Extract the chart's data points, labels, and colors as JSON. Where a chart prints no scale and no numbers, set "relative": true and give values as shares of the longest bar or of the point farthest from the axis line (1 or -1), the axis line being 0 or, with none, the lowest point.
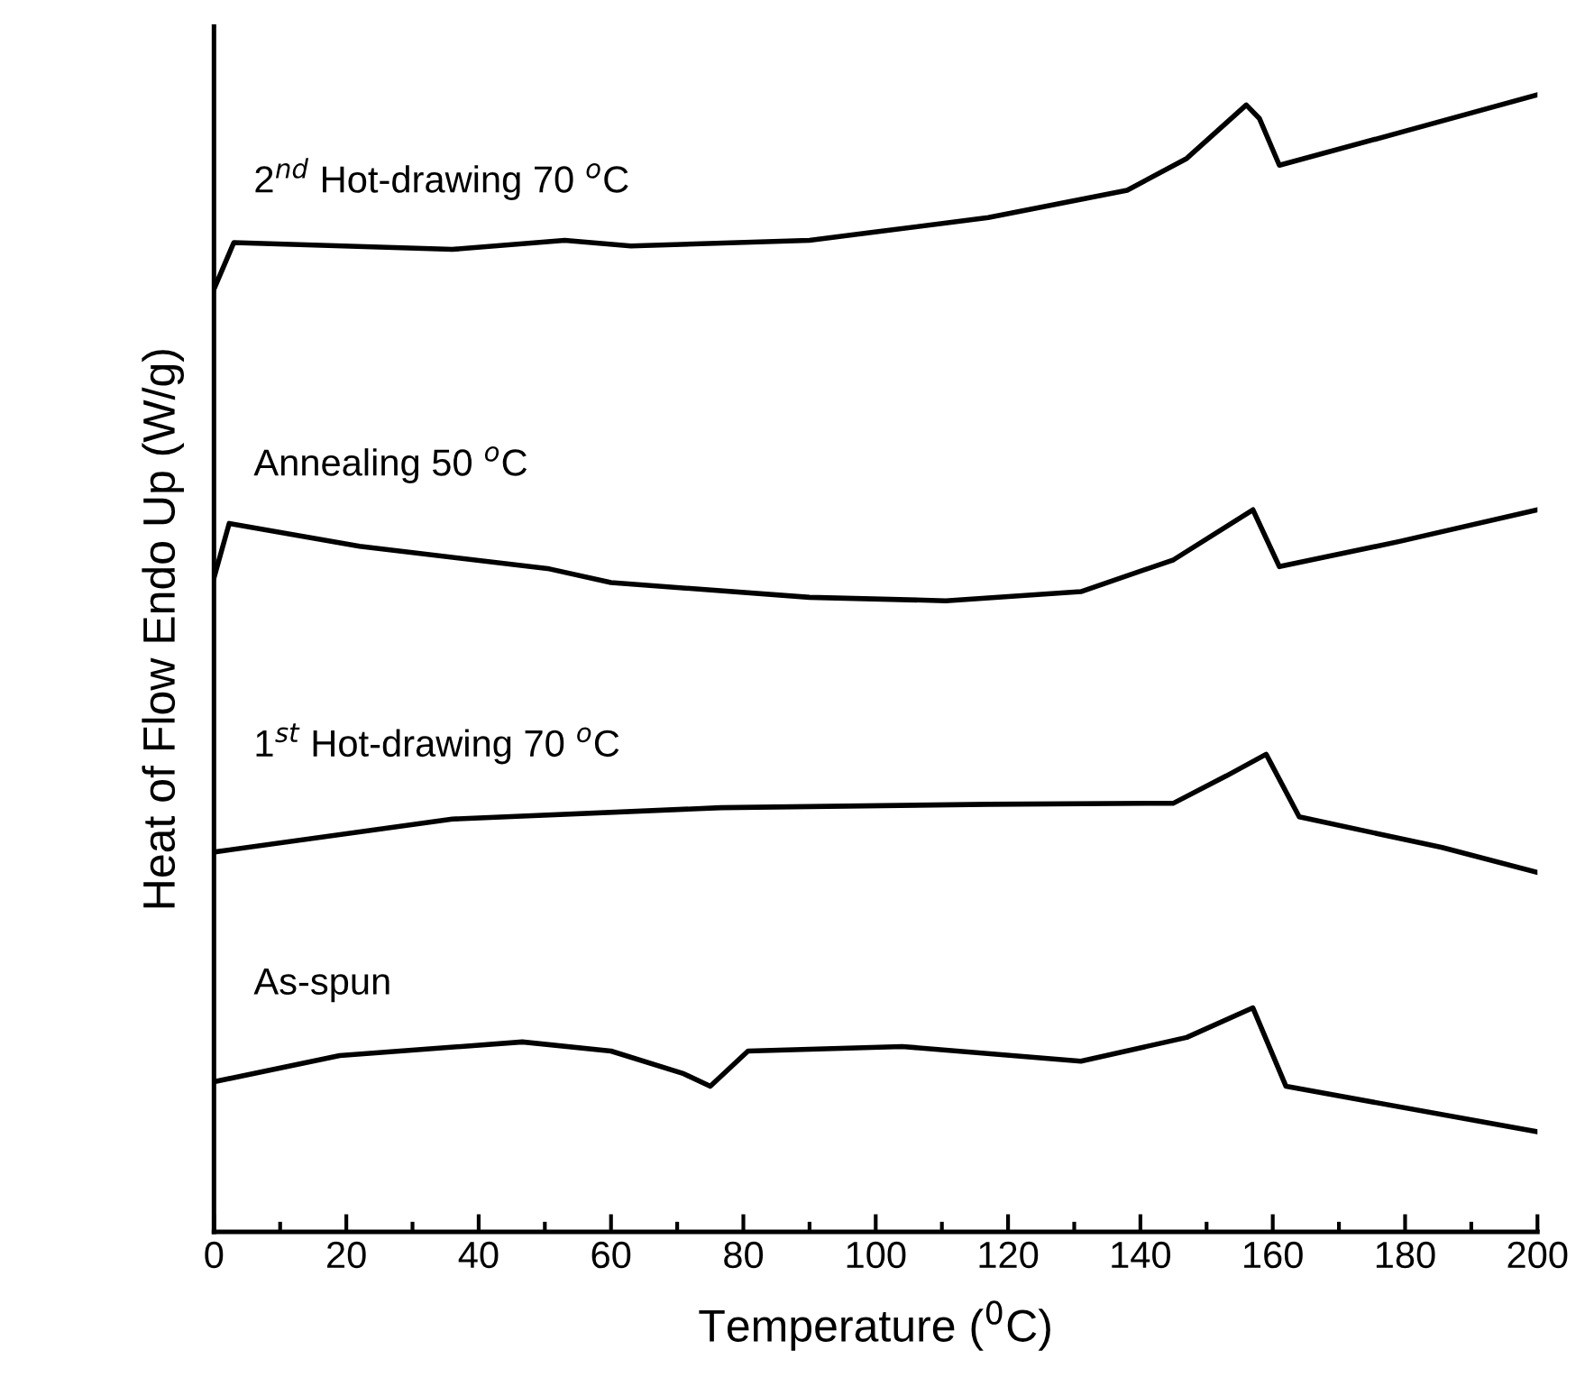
{
  "chart_data": {
    "type": "line",
    "relative": true,
    "xlabel": "Temperature ($^{0}$C)",
    "ylabel": "Heat of Flow Endo Up (W/g)",
    "xlim": [
      0,
      200
    ],
    "xticks": [
      0,
      20,
      40,
      60,
      80,
      100,
      120,
      140,
      160,
      180,
      200
    ],
    "grid": false,
    "legend": false,
    "marker": "none",
    "line_style": "solid",
    "series": [
      {
        "name": "As-spun",
        "color": "#000000",
        "x": [
          0,
          19,
          46.6,
          60,
          71,
          75,
          80.7,
          104,
          131,
          147,
          157,
          162,
          200
        ],
        "values": [
          0.132,
          0.155,
          0.167,
          0.159,
          0.139,
          0.128,
          0.159,
          0.163,
          0.15,
          0.171,
          0.197,
          0.128,
          0.088
        ]
      },
      {
        "name": "1$^{st}$ Hot-drawing 70 $^{o}$C",
        "color": "#000000",
        "x": [
          0,
          36,
          76.6,
          117,
          145,
          153,
          159,
          164,
          185.6,
          200
        ],
        "values": [
          0.334,
          0.363,
          0.373,
          0.376,
          0.377,
          0.401,
          0.42,
          0.365,
          0.338,
          0.316
        ]
      },
      {
        "name": "Annealing 50 $^{o}$C",
        "color": "#000000",
        "x": [
          0,
          2.3,
          22,
          50.7,
          60,
          90,
          110.6,
          131,
          145,
          157,
          161,
          179,
          200
        ],
        "values": [
          0.575,
          0.623,
          0.603,
          0.583,
          0.571,
          0.558,
          0.555,
          0.563,
          0.591,
          0.635,
          0.585,
          0.607,
          0.635
        ]
      },
      {
        "name": "2$^{nd}$ Hot-drawing 70 $^{o}$C",
        "color": "#000000",
        "x": [
          0,
          3,
          36,
          53,
          63,
          90,
          117,
          138,
          147,
          156,
          158,
          161,
          180,
          200
        ],
        "values": [
          0.829,
          0.87,
          0.864,
          0.872,
          0.867,
          0.872,
          0.892,
          0.916,
          0.944,
          0.991,
          0.979,
          0.938,
          0.968,
          1.0
        ]
      }
    ]
  }
}
